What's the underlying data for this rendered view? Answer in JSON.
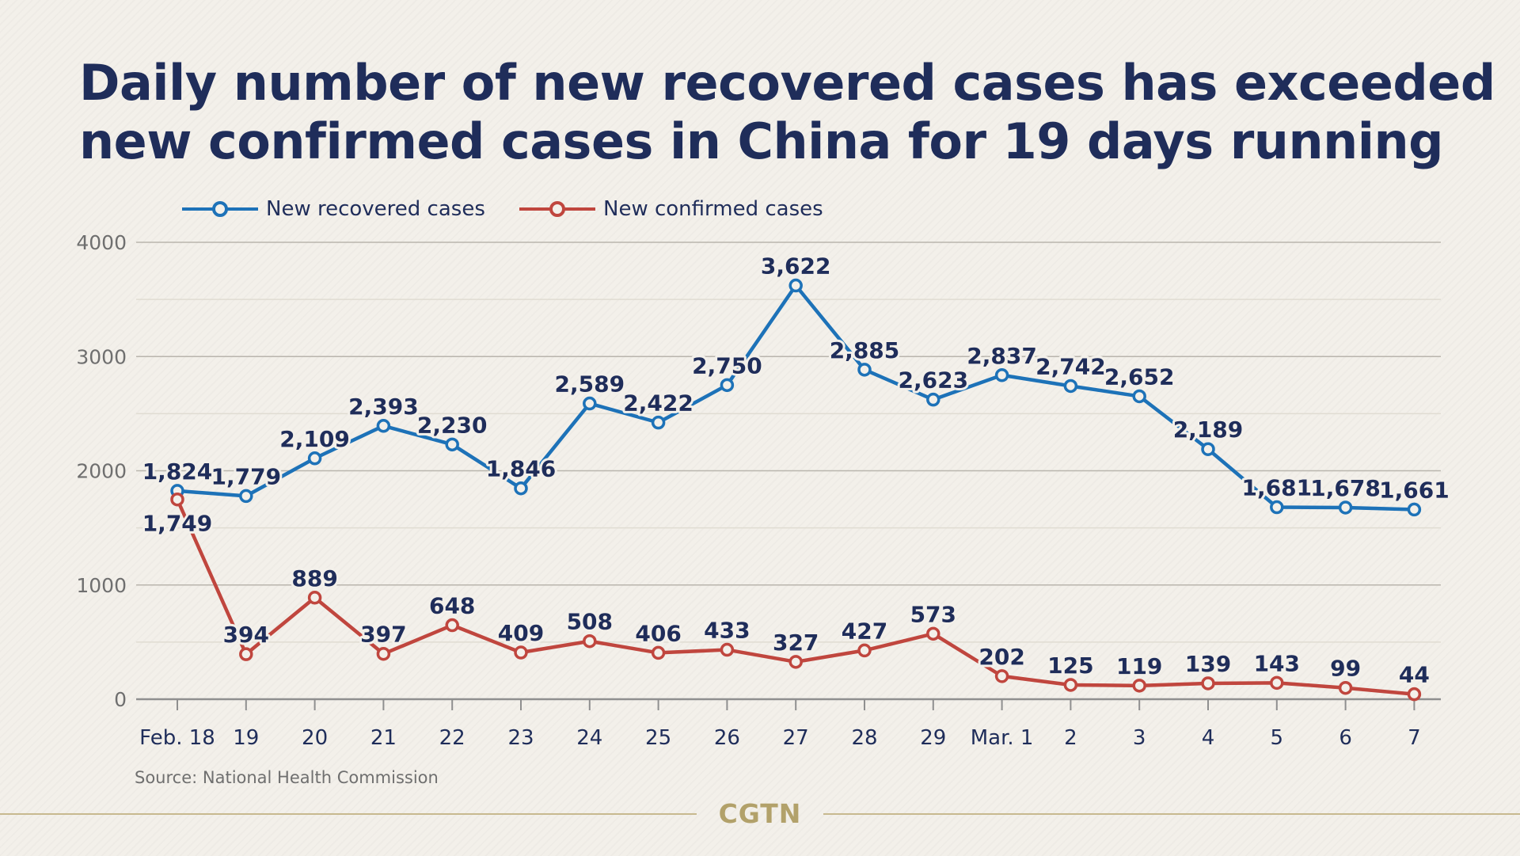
{
  "header": {
    "title_line1": "Daily number of new recovered cases has exceeded",
    "title_line2": "new confirmed cases in China for 19 days running"
  },
  "source": "Source: National Health Commission",
  "brand": {
    "logo_text": "CGTN",
    "logo_color": "#b2a16a"
  },
  "colors": {
    "recovered": "#1d72b8",
    "confirmed": "#c0463e",
    "text": "#1f2d5a",
    "background": "#f3f0ea"
  },
  "chart_data": {
    "type": "line",
    "categories": [
      "Feb. 18",
      "19",
      "20",
      "21",
      "22",
      "23",
      "24",
      "25",
      "26",
      "27",
      "28",
      "29",
      "Mar. 1",
      "2",
      "3",
      "4",
      "5",
      "6",
      "7"
    ],
    "ylim": [
      0,
      4000
    ],
    "yticks": [
      "0",
      "1000",
      "2000",
      "3000",
      "4000"
    ],
    "grid": true,
    "legend_position": "top-left",
    "series": [
      {
        "name": "New recovered cases",
        "color": "#1d72b8",
        "values": [
          1824,
          1779,
          2109,
          2393,
          2230,
          1846,
          2589,
          2422,
          2750,
          3622,
          2885,
          2623,
          2837,
          2742,
          2652,
          2189,
          1681,
          1678,
          1661
        ],
        "labels": [
          "1,824",
          "1,779",
          "2,109",
          "2,393",
          "2,230",
          "1,846",
          "2,589",
          "2,422",
          "2,750",
          "3,622",
          "2,885",
          "2,623",
          "2,837",
          "2,742",
          "2,652",
          "2,189",
          "1,681",
          "1,678",
          "1,661"
        ]
      },
      {
        "name": "New confirmed cases",
        "color": "#c0463e",
        "values": [
          1749,
          394,
          889,
          397,
          648,
          409,
          508,
          406,
          433,
          327,
          427,
          573,
          202,
          125,
          119,
          139,
          143,
          99,
          44
        ],
        "labels": [
          "1,749",
          "394",
          "889",
          "397",
          "648",
          "409",
          "508",
          "406",
          "433",
          "327",
          "427",
          "573",
          "202",
          "125",
          "119",
          "139",
          "143",
          "99",
          "44"
        ]
      }
    ]
  }
}
